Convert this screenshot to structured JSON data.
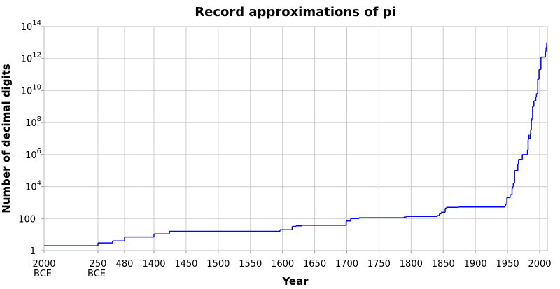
{
  "chart_data": {
    "type": "line",
    "step": true,
    "title": "Record approximations of pi",
    "xlabel": "Year",
    "ylabel": "Number of decimal digits",
    "yscale": "log",
    "ylim": [
      1,
      100000000000000
    ],
    "grid": true,
    "line_color": "#0000ff",
    "grid_color": "#cccccc",
    "x_ticks": [
      {
        "year": -2000,
        "label": "2000",
        "sub": "BCE"
      },
      {
        "year": -250,
        "label": "250",
        "sub": "BCE"
      },
      {
        "year": 480,
        "label": "480",
        "sub": ""
      },
      {
        "year": 1400,
        "label": "1400",
        "sub": ""
      },
      {
        "year": 1450,
        "label": "1450",
        "sub": ""
      },
      {
        "year": 1500,
        "label": "1500",
        "sub": ""
      },
      {
        "year": 1550,
        "label": "1550",
        "sub": ""
      },
      {
        "year": 1600,
        "label": "1600",
        "sub": ""
      },
      {
        "year": 1650,
        "label": "1650",
        "sub": ""
      },
      {
        "year": 1700,
        "label": "1700",
        "sub": ""
      },
      {
        "year": 1750,
        "label": "1750",
        "sub": ""
      },
      {
        "year": 1800,
        "label": "1800",
        "sub": ""
      },
      {
        "year": 1850,
        "label": "1850",
        "sub": ""
      },
      {
        "year": 1900,
        "label": "1900",
        "sub": ""
      },
      {
        "year": 1950,
        "label": "1950",
        "sub": ""
      },
      {
        "year": 2000,
        "label": "2000",
        "sub": ""
      }
    ],
    "y_ticks": [
      {
        "exp": 0,
        "base": "1",
        "sup": ""
      },
      {
        "exp": 2,
        "base": "100",
        "sup": ""
      },
      {
        "exp": 4,
        "base": "10",
        "sup": "4"
      },
      {
        "exp": 6,
        "base": "10",
        "sup": "6"
      },
      {
        "exp": 8,
        "base": "10",
        "sup": "8"
      },
      {
        "exp": 10,
        "base": "10",
        "sup": "10"
      },
      {
        "exp": 12,
        "base": "10",
        "sup": "12"
      },
      {
        "exp": 14,
        "base": "10",
        "sup": "14"
      }
    ],
    "points": [
      [
        -2000,
        2
      ],
      [
        -250,
        3
      ],
      [
        150,
        4
      ],
      [
        480,
        7
      ],
      [
        1400,
        11
      ],
      [
        1424,
        16
      ],
      [
        1596,
        20
      ],
      [
        1615,
        32
      ],
      [
        1621,
        35
      ],
      [
        1630,
        38
      ],
      [
        1699,
        71
      ],
      [
        1706,
        100
      ],
      [
        1719,
        112
      ],
      [
        1789,
        126
      ],
      [
        1794,
        136
      ],
      [
        1841,
        152
      ],
      [
        1844,
        200
      ],
      [
        1847,
        248
      ],
      [
        1853,
        440
      ],
      [
        1855,
        500
      ],
      [
        1874,
        527
      ],
      [
        1946,
        620
      ],
      [
        1947,
        808
      ],
      [
        1949,
        2037
      ],
      [
        1954,
        3092
      ],
      [
        1957,
        7480
      ],
      [
        1958,
        10000
      ],
      [
        1959,
        16167
      ],
      [
        1961,
        100265
      ],
      [
        1966,
        250000
      ],
      [
        1967,
        500000
      ],
      [
        1973,
        1001250
      ],
      [
        1981,
        2000036
      ],
      [
        1982,
        8388576
      ],
      [
        1982.5,
        16777206
      ],
      [
        1983,
        10013395
      ],
      [
        1985,
        17526200
      ],
      [
        1986,
        33554414
      ],
      [
        1987,
        134214700
      ],
      [
        1988,
        201326551
      ],
      [
        1989,
        1011196691
      ],
      [
        1991,
        2260000000
      ],
      [
        1994,
        4044000000
      ],
      [
        1995,
        6442450000
      ],
      [
        1997,
        51539600000
      ],
      [
        1999,
        206158430000
      ],
      [
        2002,
        1241100000000
      ],
      [
        2009,
        2699999990000
      ],
      [
        2010,
        5000000000000
      ],
      [
        2011,
        10000000000000
      ]
    ]
  }
}
